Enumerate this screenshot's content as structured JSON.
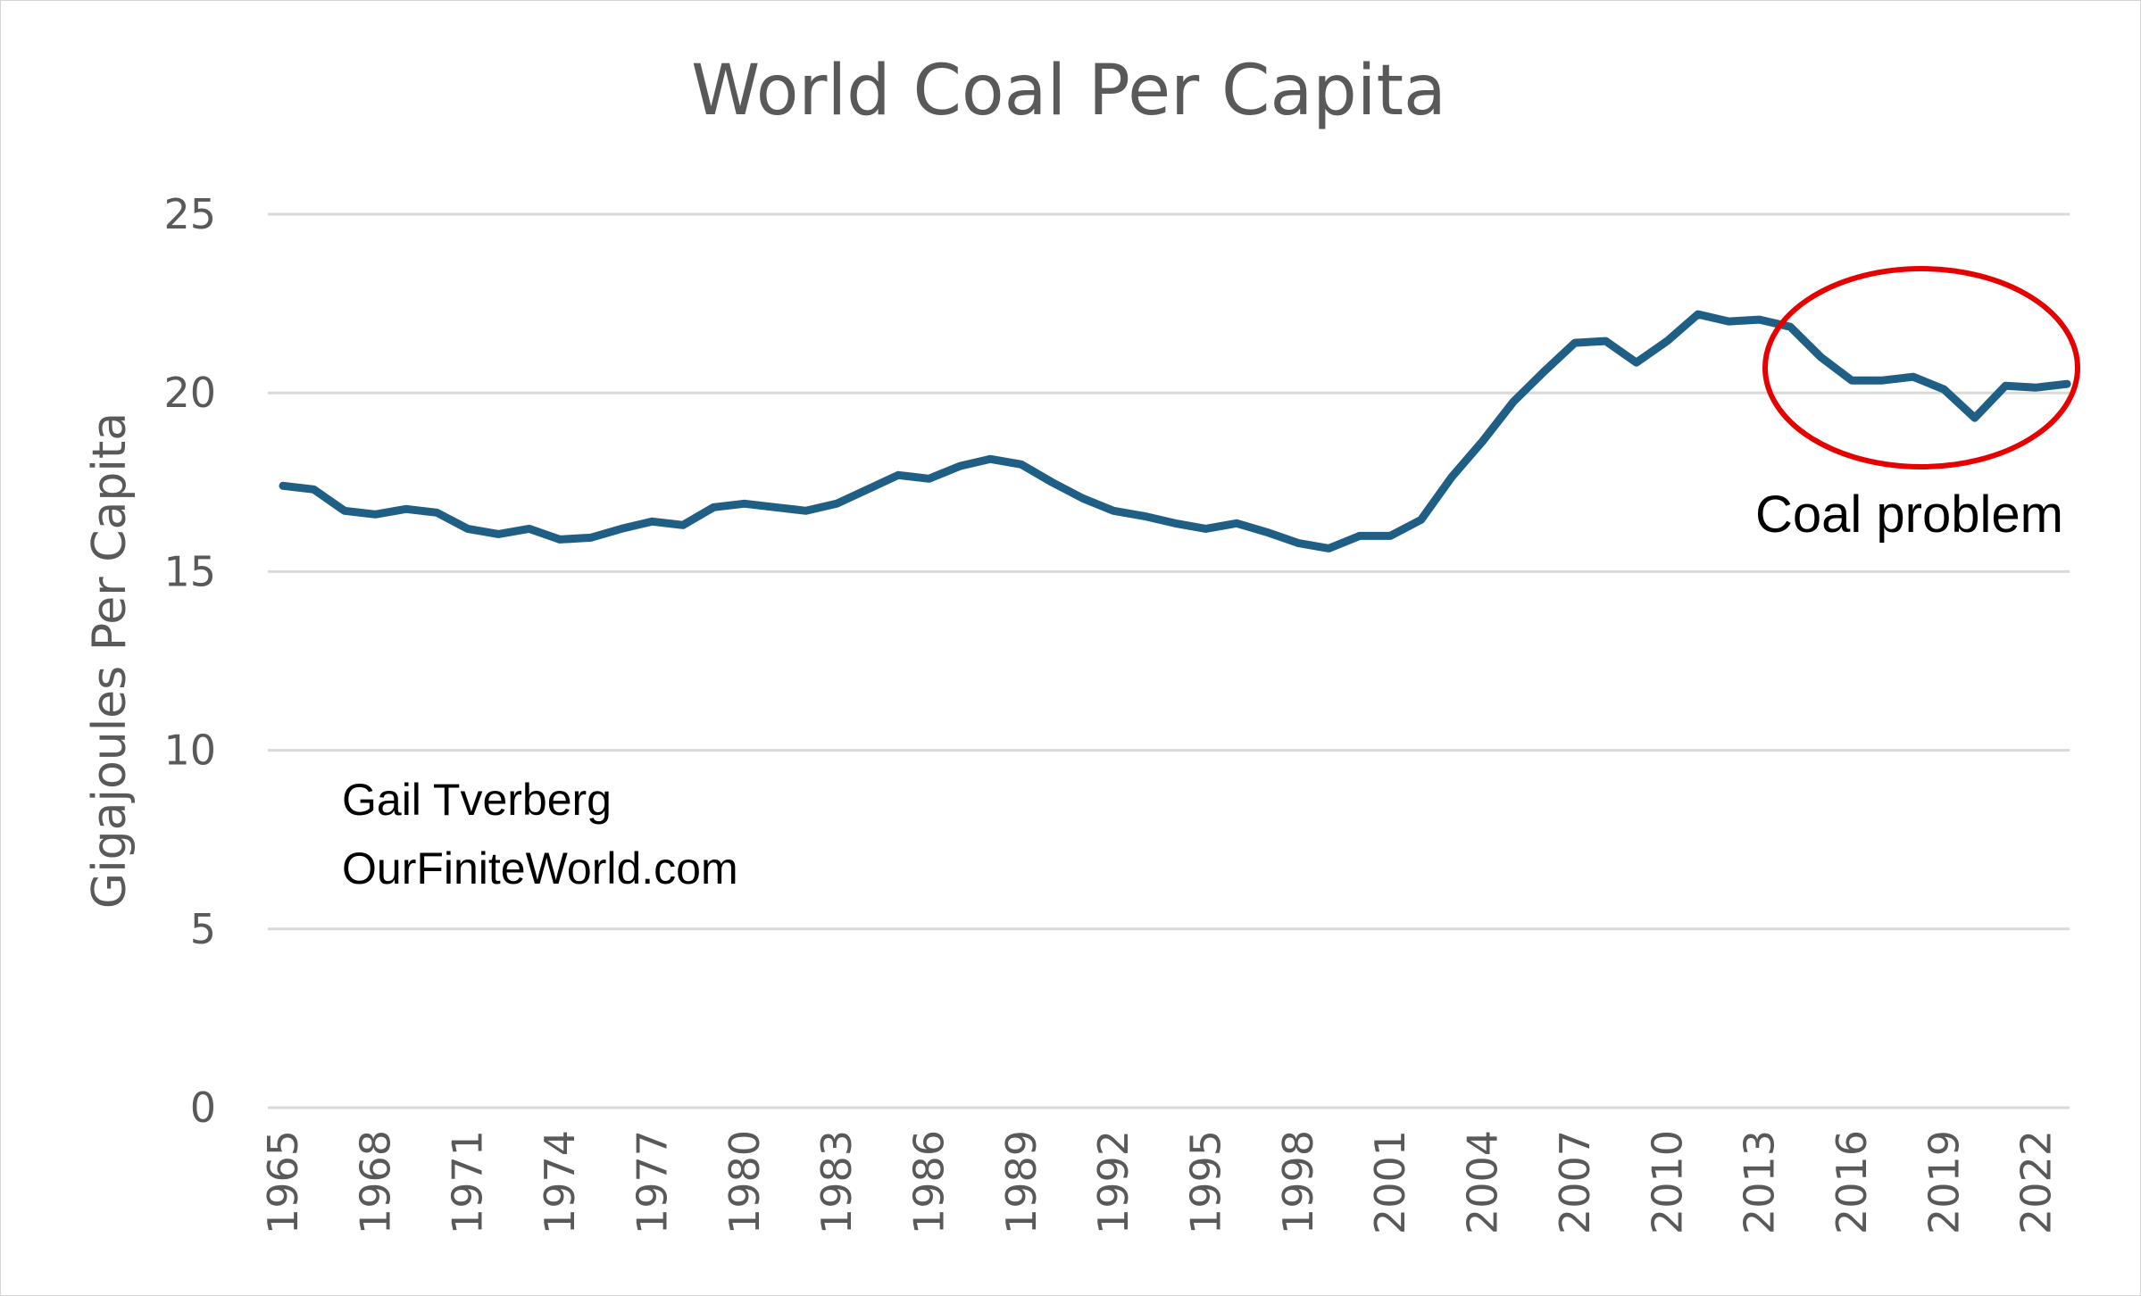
{
  "colors": {
    "series": "#1f5f86",
    "gridline": "#d9d9d9",
    "axis_text": "#595959",
    "callout_circle": "#e60000",
    "annotation_text": "#000000"
  },
  "annotations": {
    "author": "Gail Tverberg",
    "website": "OurFiniteWorld.com",
    "callout": "Coal problem"
  },
  "chart_data": {
    "type": "line",
    "title": "World Coal Per Capita",
    "xlabel": "",
    "ylabel": "Gigajoules Per Capita",
    "ylim": [
      0,
      25
    ],
    "yticks": [
      "0",
      "5",
      "10",
      "15",
      "20",
      "25"
    ],
    "xtick_labels": [
      "1965",
      "1968",
      "1971",
      "1974",
      "1977",
      "1980",
      "1983",
      "1986",
      "1989",
      "1992",
      "1995",
      "1998",
      "2001",
      "2004",
      "2007",
      "2010",
      "2013",
      "2016",
      "2019",
      "2022"
    ],
    "grid": true,
    "legend": "none",
    "x": [
      1965,
      1966,
      1967,
      1968,
      1969,
      1970,
      1971,
      1972,
      1973,
      1974,
      1975,
      1976,
      1977,
      1978,
      1979,
      1980,
      1981,
      1982,
      1983,
      1984,
      1985,
      1986,
      1987,
      1988,
      1989,
      1990,
      1991,
      1992,
      1993,
      1994,
      1995,
      1996,
      1997,
      1998,
      1999,
      2000,
      2001,
      2002,
      2003,
      2004,
      2005,
      2006,
      2007,
      2008,
      2009,
      2010,
      2011,
      2012,
      2013,
      2014,
      2015,
      2016,
      2017,
      2018,
      2019,
      2020,
      2021,
      2022,
      2023
    ],
    "series": [
      {
        "values": [
          17.4,
          17.3,
          16.7,
          16.6,
          16.75,
          16.65,
          16.2,
          16.05,
          16.2,
          15.9,
          15.95,
          16.2,
          16.4,
          16.3,
          16.8,
          16.9,
          16.8,
          16.7,
          16.9,
          17.3,
          17.7,
          17.6,
          17.95,
          18.15,
          18.0,
          17.5,
          17.05,
          16.7,
          16.55,
          16.35,
          16.2,
          16.35,
          16.1,
          15.8,
          15.65,
          16.0,
          16.0,
          16.45,
          17.65,
          18.65,
          19.75,
          20.6,
          21.4,
          21.45,
          20.85,
          21.45,
          22.2,
          22.0,
          22.05,
          21.85,
          21.0,
          20.35,
          20.35,
          20.45,
          20.1,
          19.3,
          20.2,
          20.15,
          20.25
        ]
      }
    ]
  }
}
